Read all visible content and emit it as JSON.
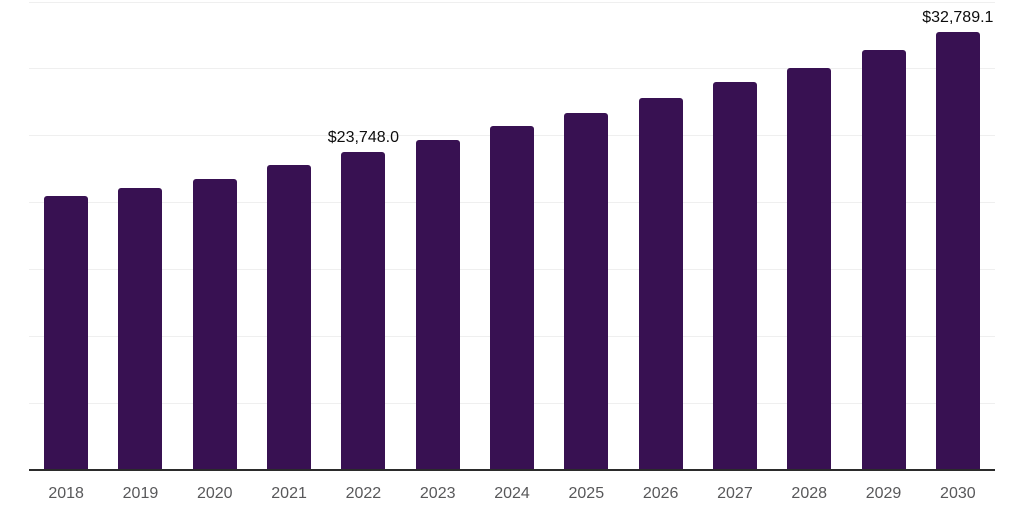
{
  "chart_data": {
    "type": "bar",
    "title": "",
    "xlabel": "",
    "ylabel": "",
    "categories": [
      "2018",
      "2019",
      "2020",
      "2021",
      "2022",
      "2023",
      "2024",
      "2025",
      "2026",
      "2027",
      "2028",
      "2029",
      "2030"
    ],
    "values": [
      20500,
      21100,
      21800,
      22800,
      23748.0,
      24700,
      25700,
      26700,
      27800,
      29000,
      30100,
      31400,
      32789.1
    ],
    "value_labels": [
      "",
      "",
      "",
      "",
      "$23,748.0",
      "",
      "",
      "",
      "",
      "",
      "",
      "",
      "$32,789.1"
    ],
    "ylim": [
      0,
      35000
    ],
    "gridline_interval": 5000,
    "grid": "horizontal",
    "legend": "none",
    "y_axis_tick_labels_visible": false,
    "notes": "values for unlabeled bars estimated from gridlines; labeled points are exact"
  },
  "style": {
    "bar_color": "#381152",
    "gridline_color": "#efefef",
    "axis_line_color": "#2b2b2b",
    "tick_label_color": "#58585a",
    "data_label_color": "#0d0d0d",
    "background_color": "#ffffff"
  }
}
